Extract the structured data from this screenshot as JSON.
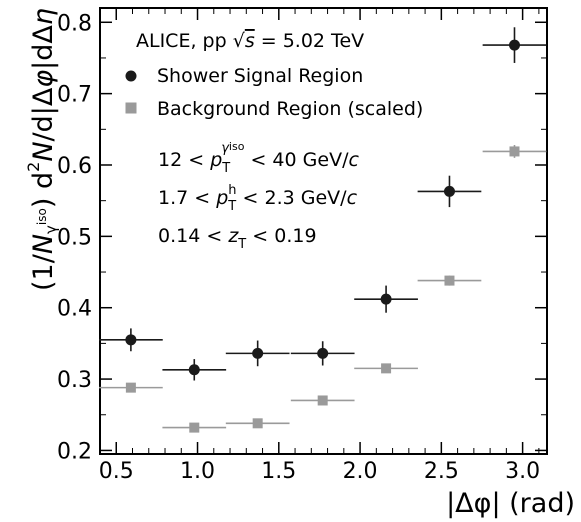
{
  "chart_data": {
    "type": "scatter",
    "title": "",
    "collaboration_text": "ALICE, pp √s = 5.02 TeV",
    "xlabel": "|Δφ| (rad)",
    "ylabel": "(1/Nγiso) d²N/d|Δφ|dΔη",
    "xlim": [
      0.4,
      3.15
    ],
    "ylim": [
      0.195,
      0.82
    ],
    "xticks": [
      0.5,
      1.0,
      1.5,
      2.0,
      2.5,
      3.0
    ],
    "yticks": [
      0.2,
      0.3,
      0.4,
      0.5,
      0.6,
      0.7,
      0.8
    ],
    "xtick_labels": [
      "0.5",
      "1.0",
      "1.5",
      "2.0",
      "2.5",
      "3.0"
    ],
    "ytick_labels": [
      "0.2",
      "0.3",
      "0.4",
      "0.5",
      "0.6",
      "0.7",
      "0.8"
    ],
    "legend_placement": "top-left",
    "kinematic_cuts": [
      "12 < pTγiso < 40 GeV/c",
      "1.7 < pTh < 2.3 GeV/c",
      "0.14 < zT < 0.19"
    ],
    "series": [
      {
        "name": "Shower Signal Region",
        "marker": "circle",
        "color": "#1a1a1a",
        "x": [
          0.59,
          0.98,
          1.37,
          1.77,
          2.16,
          2.55,
          2.95
        ],
        "x_halfwidth": 0.196,
        "values": [
          0.355,
          0.313,
          0.336,
          0.336,
          0.412,
          0.563,
          0.768
        ],
        "errors": [
          0.016,
          0.015,
          0.018,
          0.017,
          0.019,
          0.022,
          0.025
        ]
      },
      {
        "name": "Background Region (scaled)",
        "marker": "square",
        "color": "#9a9a9a",
        "x": [
          0.59,
          0.98,
          1.37,
          1.77,
          2.16,
          2.55,
          2.95
        ],
        "x_halfwidth": 0.196,
        "values": [
          0.288,
          0.232,
          0.238,
          0.27,
          0.315,
          0.438,
          0.619
        ],
        "errors": [
          0.006,
          0.005,
          0.005,
          0.006,
          0.006,
          0.007,
          0.009
        ]
      }
    ]
  }
}
